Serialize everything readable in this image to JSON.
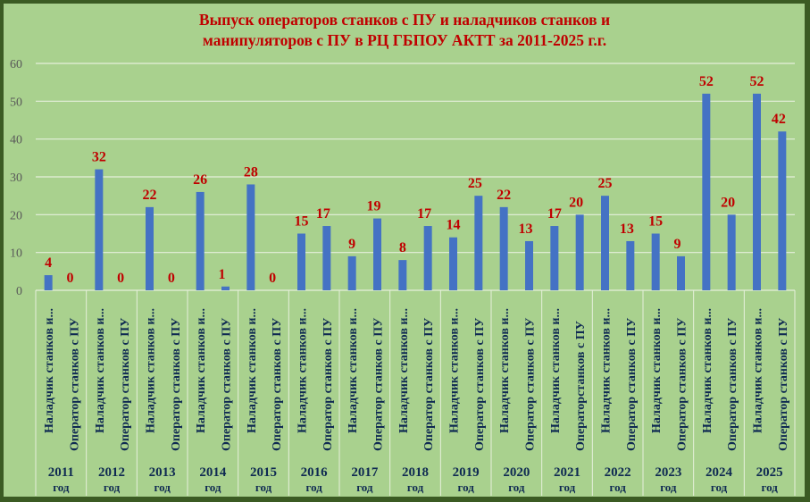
{
  "chart_data": {
    "type": "bar",
    "title_lines": [
      "Выпуск операторов станков с ПУ и наладчиков станков и",
      "манипуляторов с ПУ в РЦ ГБПОУ АКТТ за 2011-2025 г.г."
    ],
    "ylim": [
      0,
      60
    ],
    "yticks": [
      0,
      10,
      20,
      30,
      40,
      50,
      60
    ],
    "grid": true,
    "legend": "none",
    "bar_color": "#4472c4",
    "label_color": "#c00000",
    "groups": [
      {
        "year": "2011",
        "unit": "год",
        "categories": [
          "Наладчик станков и...",
          "Оператор станков с ПУ"
        ],
        "values": [
          4,
          0
        ]
      },
      {
        "year": "2012",
        "unit": "год",
        "categories": [
          "Наладчик станков и...",
          "Оператор станков с ПУ"
        ],
        "values": [
          32,
          0
        ]
      },
      {
        "year": "2013",
        "unit": "год",
        "categories": [
          "Наладчик станков и...",
          "Оператор станков с ПУ"
        ],
        "values": [
          22,
          0
        ]
      },
      {
        "year": "2014",
        "unit": "год",
        "categories": [
          "Наладчик станков и...",
          "Оператор станков с ПУ"
        ],
        "values": [
          26,
          1
        ]
      },
      {
        "year": "2015",
        "unit": "год",
        "categories": [
          "Наладчик станков и...",
          "Оператор станков с ПУ"
        ],
        "values": [
          28,
          0
        ]
      },
      {
        "year": "2016",
        "unit": "год",
        "categories": [
          "Наладчик станков и...",
          "Оператор станков с ПУ"
        ],
        "values": [
          15,
          17
        ]
      },
      {
        "year": "2017",
        "unit": "год",
        "categories": [
          "Наладчик станков и...",
          "Оператор станков с ПУ"
        ],
        "values": [
          9,
          19
        ]
      },
      {
        "year": "2018",
        "unit": "год",
        "categories": [
          "Наладчик станков и...",
          "Оператор станков с ПУ"
        ],
        "values": [
          8,
          17
        ]
      },
      {
        "year": "2019",
        "unit": "год",
        "categories": [
          "Наладчик станков и...",
          "Оператор станков с ПУ"
        ],
        "values": [
          14,
          25
        ]
      },
      {
        "year": "2020",
        "unit": "год",
        "categories": [
          "Наладчик станков и...",
          "Оператор станков с ПУ"
        ],
        "values": [
          22,
          13
        ]
      },
      {
        "year": "2021",
        "unit": "год",
        "categories": [
          "Наладчик станков и...",
          "Операторстанков с ПУ"
        ],
        "values": [
          17,
          20
        ]
      },
      {
        "year": "2022",
        "unit": "год",
        "categories": [
          "Наладчик станков и...",
          "Оператор станков с ПУ"
        ],
        "values": [
          25,
          13
        ]
      },
      {
        "year": "2023",
        "unit": "год",
        "categories": [
          "Наладчик станков и...",
          "Оператор станков с ПУ"
        ],
        "values": [
          15,
          9
        ]
      },
      {
        "year": "2024",
        "unit": "год",
        "categories": [
          "Наладчик станков и...",
          "Оператор станков с ПУ"
        ],
        "values": [
          52,
          20
        ]
      },
      {
        "year": "2025",
        "unit": "год",
        "categories": [
          "Наладчик станков и...",
          "Оператор станков с ПУ"
        ],
        "values": [
          52,
          42
        ]
      }
    ]
  }
}
